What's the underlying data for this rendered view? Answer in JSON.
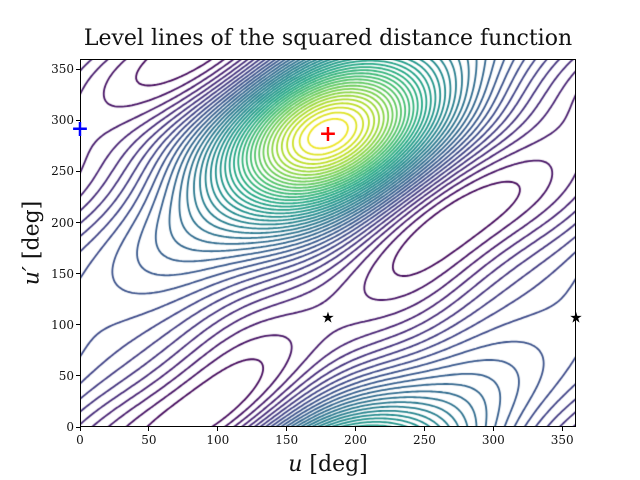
{
  "chart_data": {
    "type": "contour",
    "title": "Level lines of the squared distance function",
    "xlabel": "u [deg]",
    "xlabel_var": "u",
    "xlabel_unit": "[deg]",
    "ylabel": "u′ [deg]",
    "ylabel_var": "u′",
    "ylabel_unit": "[deg]",
    "xlim": [
      0,
      360
    ],
    "ylim": [
      0,
      360
    ],
    "xticks": [
      0,
      50,
      100,
      150,
      200,
      250,
      300,
      350
    ],
    "yticks": [
      0,
      50,
      100,
      150,
      200,
      250,
      300,
      350
    ],
    "grid": false,
    "colormap": "viridis",
    "levels": 40,
    "annotations": [
      {
        "name": "maximum",
        "marker": "+",
        "color": "#ff0000",
        "x": 180,
        "y": 287
      },
      {
        "name": "blue-point",
        "marker": "+",
        "color": "#0000ff",
        "x": 0,
        "y": 292
      },
      {
        "name": "saddle-1",
        "marker": "star",
        "color": "#000000",
        "x": 180,
        "y": 107
      },
      {
        "name": "saddle-2",
        "marker": "star",
        "color": "#000000",
        "x": 360,
        "y": 107
      }
    ],
    "features": {
      "global_max": [
        180,
        287
      ],
      "secondary_high_region": [
        200,
        0
      ],
      "minimum_region_upper_right": [
        330,
        180
      ],
      "minimum_region_lower_left": [
        50,
        20
      ]
    }
  },
  "markers": {
    "plus": "+",
    "star": "★"
  }
}
